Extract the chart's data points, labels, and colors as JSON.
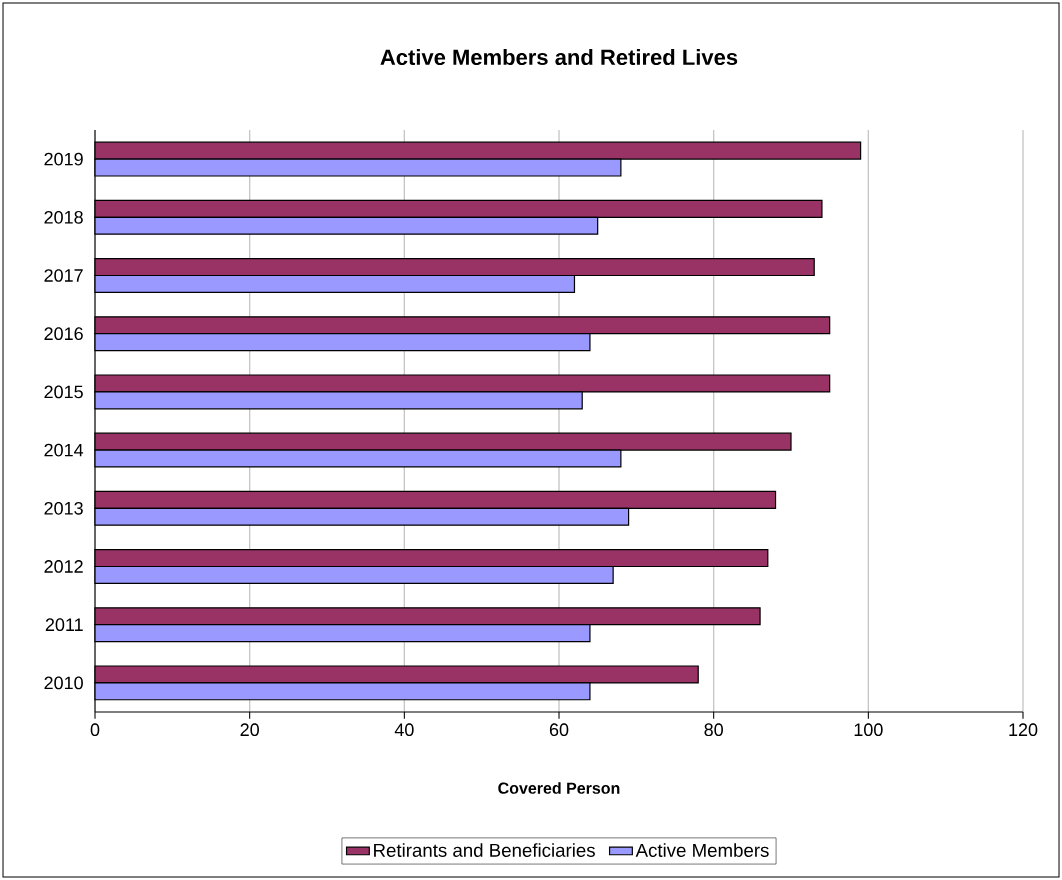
{
  "chart_data": {
    "type": "bar",
    "orientation": "horizontal",
    "title": "Active Members and Retired Lives",
    "xlabel": "Covered Person",
    "categories": [
      "2019",
      "2018",
      "2017",
      "2016",
      "2015",
      "2014",
      "2013",
      "2012",
      "2011",
      "2010"
    ],
    "series": [
      {
        "name": "Retirants and Beneficiaries",
        "color": "#993366",
        "values": [
          99,
          94,
          93,
          95,
          95,
          90,
          88,
          87,
          86,
          78
        ]
      },
      {
        "name": "Active Members",
        "color": "#9999ff",
        "values": [
          68,
          65,
          62,
          64,
          63,
          68,
          69,
          67,
          64,
          64
        ]
      }
    ],
    "xlim": [
      0,
      120
    ],
    "xticks": [
      0,
      20,
      40,
      60,
      80,
      100,
      120
    ],
    "grid": "x",
    "legend": "bottom"
  }
}
